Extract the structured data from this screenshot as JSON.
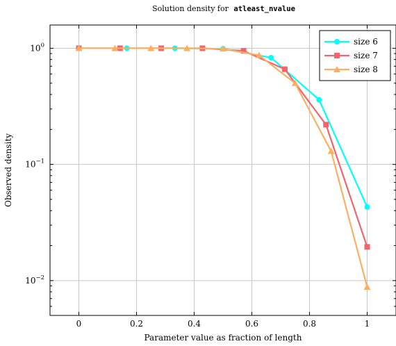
{
  "chart_data": {
    "type": "line",
    "title_prefix": "Solution density for",
    "title_code": "atleast_nvalue",
    "xlabel": "Parameter value as fraction of length",
    "ylabel": "Observed density",
    "xlim": [
      -0.1,
      1.1
    ],
    "ylim_log10": [
      -2.3,
      0.2
    ],
    "yscale": "log",
    "grid": true,
    "legend_position": "top-right",
    "x_ticks": [
      {
        "value": 0,
        "label": "0"
      },
      {
        "value": 0.2,
        "label": "0.2"
      },
      {
        "value": 0.4,
        "label": "0.4"
      },
      {
        "value": 0.6,
        "label": "0.6"
      },
      {
        "value": 0.8,
        "label": "0.8"
      },
      {
        "value": 1,
        "label": "1"
      }
    ],
    "y_ticks": [
      {
        "value": 1,
        "base": "10",
        "exp": "0"
      },
      {
        "value": 0.1,
        "base": "10",
        "exp": "−1"
      },
      {
        "value": 0.01,
        "base": "10",
        "exp": "−2"
      }
    ],
    "series": [
      {
        "name": "size 6",
        "color": "#00ffff",
        "marker": "circle",
        "x": [
          0,
          0.1667,
          0.3333,
          0.5,
          0.6667,
          0.8333,
          1.0
        ],
        "y": [
          1.0,
          1.0,
          1.0,
          0.99,
          0.83,
          0.36,
          0.043
        ]
      },
      {
        "name": "size 7",
        "color": "#f0646e",
        "marker": "square",
        "x": [
          0,
          0.1429,
          0.2857,
          0.4286,
          0.5714,
          0.7143,
          0.8571,
          1.0
        ],
        "y": [
          1.0,
          1.0,
          1.0,
          1.0,
          0.95,
          0.66,
          0.22,
          0.0195
        ]
      },
      {
        "name": "size 8",
        "color": "#fdae61",
        "marker": "triangle",
        "x": [
          0,
          0.125,
          0.25,
          0.375,
          0.5,
          0.625,
          0.75,
          0.875,
          1.0
        ],
        "y": [
          1.0,
          1.0,
          1.0,
          1.0,
          0.99,
          0.87,
          0.5,
          0.13,
          0.0088
        ]
      }
    ]
  }
}
